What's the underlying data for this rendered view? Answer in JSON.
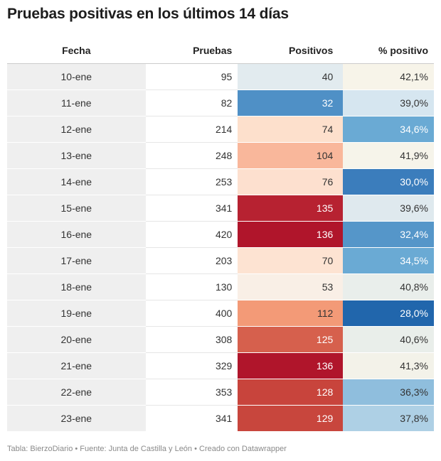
{
  "title": "Pruebas positivas en los últimos 14 días",
  "footer": "Tabla: BierzoDiario • Fuente: Junta de Castilla y León • Creado con Datawrapper",
  "chart_data": {
    "type": "table",
    "columns": [
      "Fecha",
      "Pruebas",
      "Positivos",
      "% positivo"
    ],
    "rows": [
      {
        "fecha": "10-ene",
        "pruebas": "95",
        "positivos": "40",
        "pct": "42,1%",
        "pos_bg": "#e2ebef",
        "pos_fg": "#333333",
        "pct_bg": "#f7f4e9",
        "pct_fg": "#333333"
      },
      {
        "fecha": "11-ene",
        "pruebas": "82",
        "positivos": "32",
        "pct": "39,0%",
        "pos_bg": "#4f90c6",
        "pos_fg": "#ffffff",
        "pct_bg": "#d6e6f0",
        "pct_fg": "#333333"
      },
      {
        "fecha": "12-ene",
        "pruebas": "214",
        "positivos": "74",
        "pct": "34,6%",
        "pos_bg": "#fde0cc",
        "pos_fg": "#333333",
        "pct_bg": "#6aaad4",
        "pct_fg": "#ffffff"
      },
      {
        "fecha": "13-ene",
        "pruebas": "248",
        "positivos": "104",
        "pct": "41,9%",
        "pos_bg": "#f9b79b",
        "pos_fg": "#333333",
        "pct_bg": "#f6f4ea",
        "pct_fg": "#333333"
      },
      {
        "fecha": "14-ene",
        "pruebas": "253",
        "positivos": "76",
        "pct": "30,0%",
        "pos_bg": "#fde0cf",
        "pos_fg": "#333333",
        "pct_bg": "#3b7dbc",
        "pct_fg": "#ffffff"
      },
      {
        "fecha": "15-ene",
        "pruebas": "341",
        "positivos": "135",
        "pct": "39,6%",
        "pos_bg": "#b72231",
        "pos_fg": "#ffffff",
        "pct_bg": "#dfe9ee",
        "pct_fg": "#333333"
      },
      {
        "fecha": "16-ene",
        "pruebas": "420",
        "positivos": "136",
        "pct": "32,4%",
        "pos_bg": "#b0152b",
        "pos_fg": "#ffffff",
        "pct_bg": "#5596c9",
        "pct_fg": "#ffffff"
      },
      {
        "fecha": "17-ene",
        "pruebas": "203",
        "positivos": "70",
        "pct": "34,5%",
        "pos_bg": "#fde3d2",
        "pos_fg": "#333333",
        "pct_bg": "#6aaad4",
        "pct_fg": "#ffffff"
      },
      {
        "fecha": "18-ene",
        "pruebas": "130",
        "positivos": "53",
        "pct": "40,8%",
        "pos_bg": "#f9efe6",
        "pos_fg": "#333333",
        "pct_bg": "#e9eeeb",
        "pct_fg": "#333333"
      },
      {
        "fecha": "19-ene",
        "pruebas": "400",
        "positivos": "112",
        "pct": "28,0%",
        "pos_bg": "#f39a77",
        "pos_fg": "#333333",
        "pct_bg": "#2166ac",
        "pct_fg": "#ffffff"
      },
      {
        "fecha": "20-ene",
        "pruebas": "308",
        "positivos": "125",
        "pct": "40,6%",
        "pos_bg": "#d6604d",
        "pos_fg": "#ffffff",
        "pct_bg": "#e9eeea",
        "pct_fg": "#333333"
      },
      {
        "fecha": "21-ene",
        "pruebas": "329",
        "positivos": "136",
        "pct": "41,3%",
        "pos_bg": "#b0152b",
        "pos_fg": "#ffffff",
        "pct_bg": "#f3f2e9",
        "pct_fg": "#333333"
      },
      {
        "fecha": "22-ene",
        "pruebas": "353",
        "positivos": "128",
        "pct": "36,3%",
        "pos_bg": "#c8443c",
        "pos_fg": "#ffffff",
        "pct_bg": "#8fbedd",
        "pct_fg": "#333333"
      },
      {
        "fecha": "23-ene",
        "pruebas": "341",
        "positivos": "129",
        "pct": "37,8%",
        "pos_bg": "#c8463d",
        "pos_fg": "#ffffff",
        "pct_bg": "#aed0e5",
        "pct_fg": "#333333"
      }
    ]
  }
}
